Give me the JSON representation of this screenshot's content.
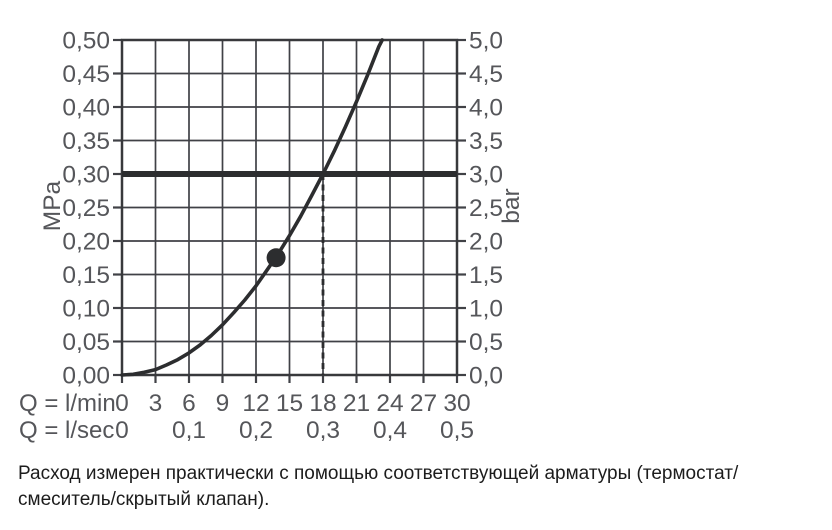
{
  "colors": {
    "background": "#ffffff",
    "axis_text": "#55565a",
    "grid_line": "#404146",
    "plot_border": "#38393c",
    "curve": "#2c2d2f",
    "reference_line": "#2c2d2f",
    "guide_line": "#2c2d2f",
    "marker": "#2c2d2f",
    "caption_text": "#1c1c1c"
  },
  "chart_data": {
    "type": "line",
    "title": "",
    "x_lmin": {
      "label": "Q = l/min",
      "range": [
        0,
        30
      ],
      "ticks": [
        "0",
        "3",
        "6",
        "9",
        "12",
        "15",
        "18",
        "21",
        "24",
        "27",
        "30"
      ]
    },
    "x_lsec": {
      "label": "Q = l/sec",
      "ticks": [
        {
          "label": "0",
          "q_lmin": 0
        },
        {
          "label": "0,1",
          "q_lmin": 6
        },
        {
          "label": "0,2",
          "q_lmin": 12
        },
        {
          "label": "0,3",
          "q_lmin": 18
        },
        {
          "label": "0,4",
          "q_lmin": 24
        },
        {
          "label": "0,5",
          "q_lmin": 30
        }
      ]
    },
    "y_left": {
      "label": "MPa",
      "range": [
        0,
        0.5
      ],
      "ticks": [
        "0,00",
        "0,05",
        "0,10",
        "0,15",
        "0,20",
        "0,25",
        "0,30",
        "0,35",
        "0,40",
        "0,45",
        "0,50"
      ]
    },
    "y_right": {
      "label": "bar",
      "range": [
        0,
        5
      ],
      "ticks": [
        "0,0",
        "0,5",
        "1,0",
        "1,5",
        "2,0",
        "2,5",
        "3,0",
        "3,5",
        "4,0",
        "4,5",
        "5,0"
      ]
    },
    "grid": {
      "x_step_lmin": 3,
      "y_step_mpa": 0.05,
      "grid_on": true
    },
    "curve": {
      "name": "flow-vs-pressure",
      "points_q_p": [
        [
          0,
          0
        ],
        [
          1,
          0.001
        ],
        [
          2,
          0.004
        ],
        [
          3,
          0.008
        ],
        [
          4,
          0.015
        ],
        [
          5,
          0.023
        ],
        [
          6,
          0.033
        ],
        [
          7,
          0.045
        ],
        [
          8,
          0.059
        ],
        [
          9,
          0.075
        ],
        [
          10,
          0.093
        ],
        [
          11,
          0.112
        ],
        [
          12,
          0.133
        ],
        [
          13,
          0.157
        ],
        [
          14,
          0.181
        ],
        [
          15,
          0.208
        ],
        [
          16,
          0.237
        ],
        [
          17,
          0.268
        ],
        [
          18,
          0.3
        ],
        [
          19,
          0.334
        ],
        [
          20,
          0.37
        ],
        [
          21,
          0.408
        ],
        [
          22,
          0.448
        ],
        [
          23,
          0.49
        ],
        [
          23.3,
          0.5
        ]
      ]
    },
    "marker_point": {
      "q_lmin": 13.8,
      "p_mpa": 0.175,
      "bar": 1.75
    },
    "reference_line_p_mpa": 0.3,
    "guide_line": {
      "q_lmin": 18,
      "p_from": 0,
      "p_to": 0.3,
      "style": "dashed"
    }
  },
  "caption": {
    "lines": [
      "Расход измерен практически с помощью соответствующей арматуры (термостат/",
      "смеситель/скрытый клапан)."
    ]
  }
}
